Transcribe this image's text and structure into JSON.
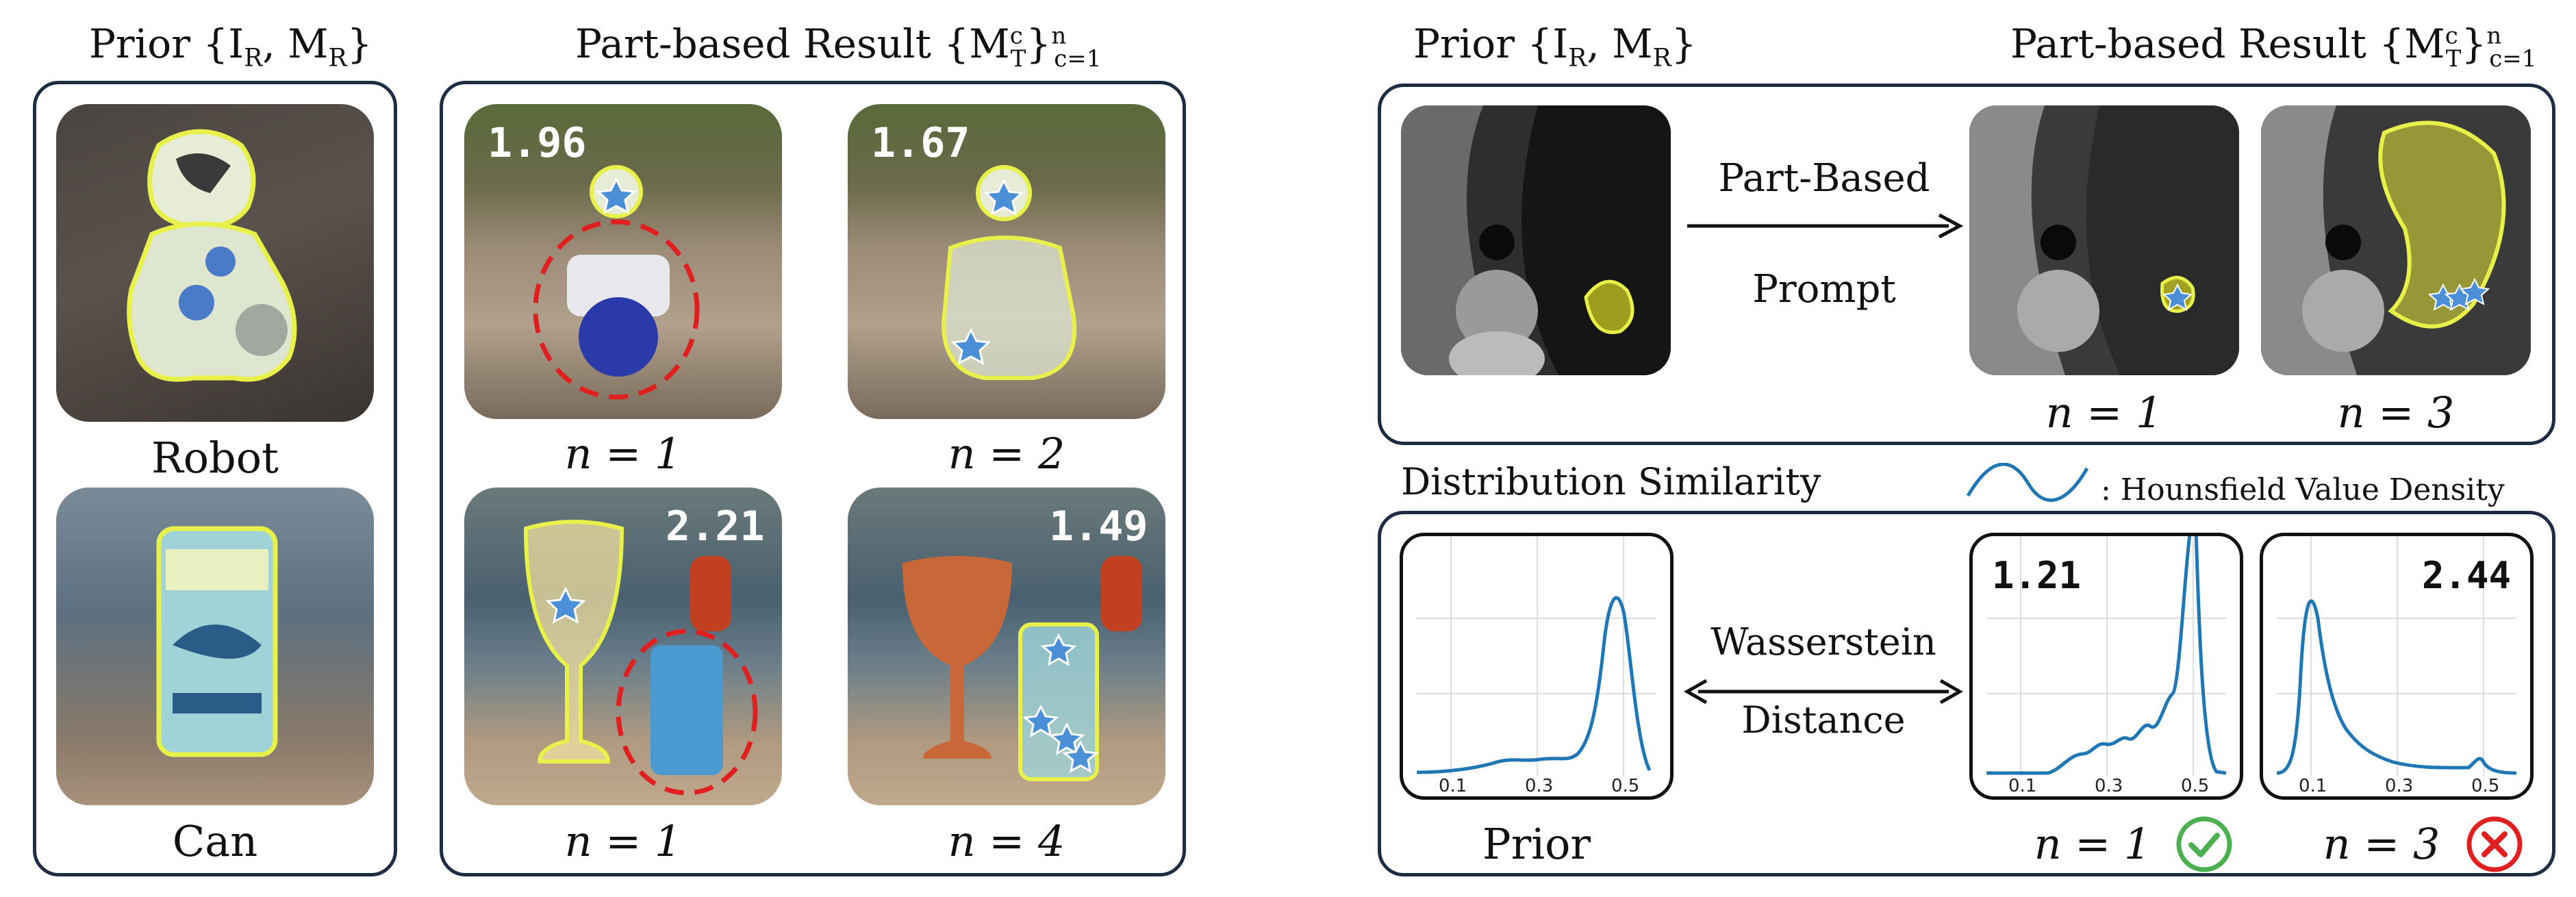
{
  "left_figure": {
    "prior_header": "Prior {I",
    "prior_header_sub1": "R",
    "prior_header_mid": ", M",
    "prior_header_sub2": "R",
    "prior_header_end": "}",
    "result_header": "Part-based Result {M",
    "result_header_sup": "c",
    "result_header_sub": "T",
    "result_header_end": "}",
    "result_header_range_sup": "n",
    "result_header_range_sub": "c=1",
    "prior_labels": [
      "Robot",
      "Can"
    ],
    "results": [
      {
        "score": "1.96",
        "n_label": "n = 1"
      },
      {
        "score": "1.67",
        "n_label": "n = 2"
      },
      {
        "score": "2.21",
        "n_label": "n = 1"
      },
      {
        "score": "1.49",
        "n_label": "n = 4"
      }
    ]
  },
  "right_figure": {
    "prior_header": "Prior {I",
    "prior_header_sub1": "R",
    "prior_header_mid": ", M",
    "prior_header_sub2": "R",
    "prior_header_end": "}",
    "result_header": "Part-based Result {M",
    "result_header_sup": "c",
    "result_header_sub": "T",
    "result_header_end": "}",
    "result_header_range_sup": "n",
    "result_header_range_sub": "c=1",
    "arrow_label_line1": "Part-Based",
    "arrow_label_line2": "Prompt",
    "ct_n_labels": [
      "n = 1",
      "n = 3"
    ],
    "distribution_title": "Distribution Similarity",
    "legend_label": ": Hounsfield Value Density",
    "wasserstein_line1": "Wasserstein",
    "wasserstein_line2": "Distance",
    "prior_label": "Prior",
    "plot_scores": [
      "1.21",
      "2.44"
    ],
    "plot_n_labels": [
      "n = 1",
      "n = 3"
    ],
    "x_ticks": [
      "0.1",
      "0.3",
      "0.5"
    ],
    "accent_color": "#1f77b4",
    "check_color": "#4caf50",
    "cross_color": "#e02020"
  }
}
